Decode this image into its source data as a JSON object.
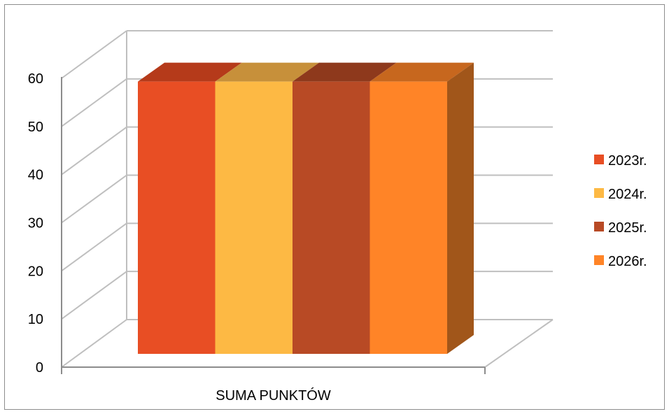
{
  "chart_data": {
    "type": "bar",
    "categories": [
      "SUMA PUNKTÓW"
    ],
    "series": [
      {
        "name": "2023r.",
        "values": [
          57
        ],
        "color": "#E84E24",
        "top_color": "#B53A1A"
      },
      {
        "name": "2024r.",
        "values": [
          57
        ],
        "color": "#FDB944",
        "top_color": "#C7903A"
      },
      {
        "name": "2025r.",
        "values": [
          57
        ],
        "color": "#B84A25",
        "top_color": "#8E391C"
      },
      {
        "name": "2026r.",
        "values": [
          57
        ],
        "color": "#FF8427",
        "top_color": "#C7671E",
        "side_color": "#A1561A"
      }
    ],
    "y_ticks": [
      "0",
      "10",
      "20",
      "30",
      "40",
      "50",
      "60"
    ],
    "ylim": [
      0,
      60
    ],
    "grid": true,
    "legend_position": "right",
    "style": "3d-clustered-column",
    "title": "",
    "xlabel": "",
    "ylabel": ""
  }
}
